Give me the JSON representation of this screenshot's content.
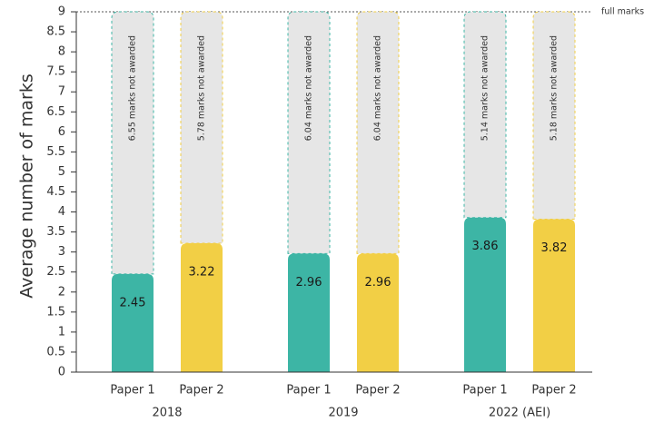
{
  "chart_data": {
    "type": "bar",
    "y_label": "Average number of marks",
    "categories": [
      "Paper 1",
      "Paper 2",
      "Paper 1",
      "Paper 2",
      "Paper 1",
      "Paper 2"
    ],
    "groups": [
      "2018",
      "2019",
      "2022 (AEI)"
    ],
    "values": [
      2.45,
      3.22,
      2.96,
      2.96,
      3.86,
      3.82
    ],
    "colors": [
      "#3db5a5",
      "#f2cf45",
      "#3db5a5",
      "#f2cf45",
      "#3db5a5",
      "#f2cf45"
    ],
    "not_awarded": {
      "values": [
        6.55,
        5.78,
        6.04,
        6.04,
        5.14,
        5.18
      ],
      "value_labels": [
        "6.55 marks not awarded",
        "5.78 marks not awarded",
        "6.04 marks not awarded",
        "6.04 marks not awarded",
        "5.14 marks not awarded",
        "5.18 marks not awarded"
      ],
      "color": "#e6e6e6"
    },
    "full_marks_label": "full marks",
    "ylim": [
      0,
      9
    ],
    "yticks": [
      0,
      0.5,
      1,
      1.5,
      2,
      2.5,
      3,
      3.5,
      4,
      4.5,
      5,
      5.5,
      6,
      6.5,
      7,
      7.5,
      8,
      8.5,
      9
    ]
  }
}
